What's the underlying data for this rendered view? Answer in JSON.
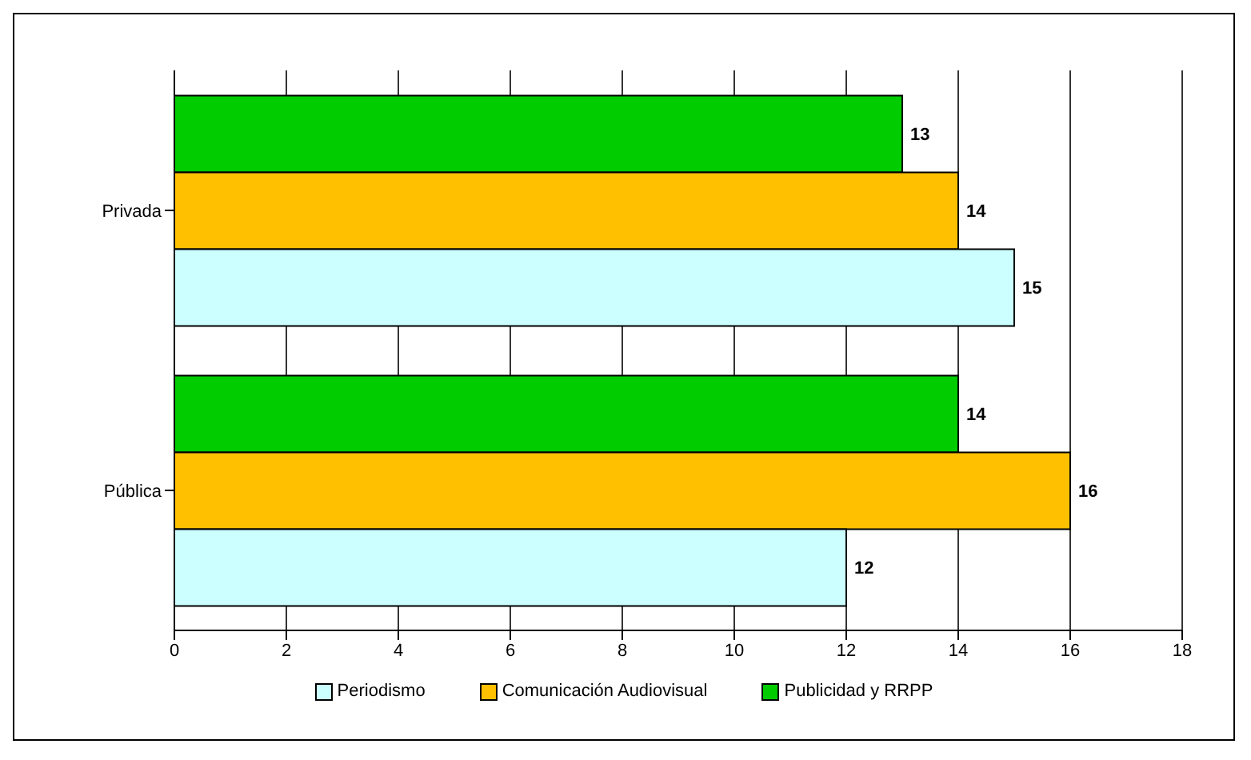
{
  "chart_data": {
    "type": "bar",
    "orientation": "horizontal",
    "categories": [
      "Privada",
      "Pública"
    ],
    "series": [
      {
        "name": "Periodismo",
        "color": "#ccffff",
        "values": [
          15,
          12
        ]
      },
      {
        "name": "Comunicación Audiovisual",
        "color": "#ffc000",
        "values": [
          14,
          16
        ]
      },
      {
        "name": "Publicidad y RRPP",
        "color": "#00cc00",
        "values": [
          13,
          14
        ]
      }
    ],
    "xlim": [
      0,
      18
    ],
    "xticks": [
      0,
      2,
      4,
      6,
      8,
      10,
      12,
      14,
      16,
      18
    ],
    "grid": "x",
    "legend": "bottom",
    "data_labels": true
  }
}
